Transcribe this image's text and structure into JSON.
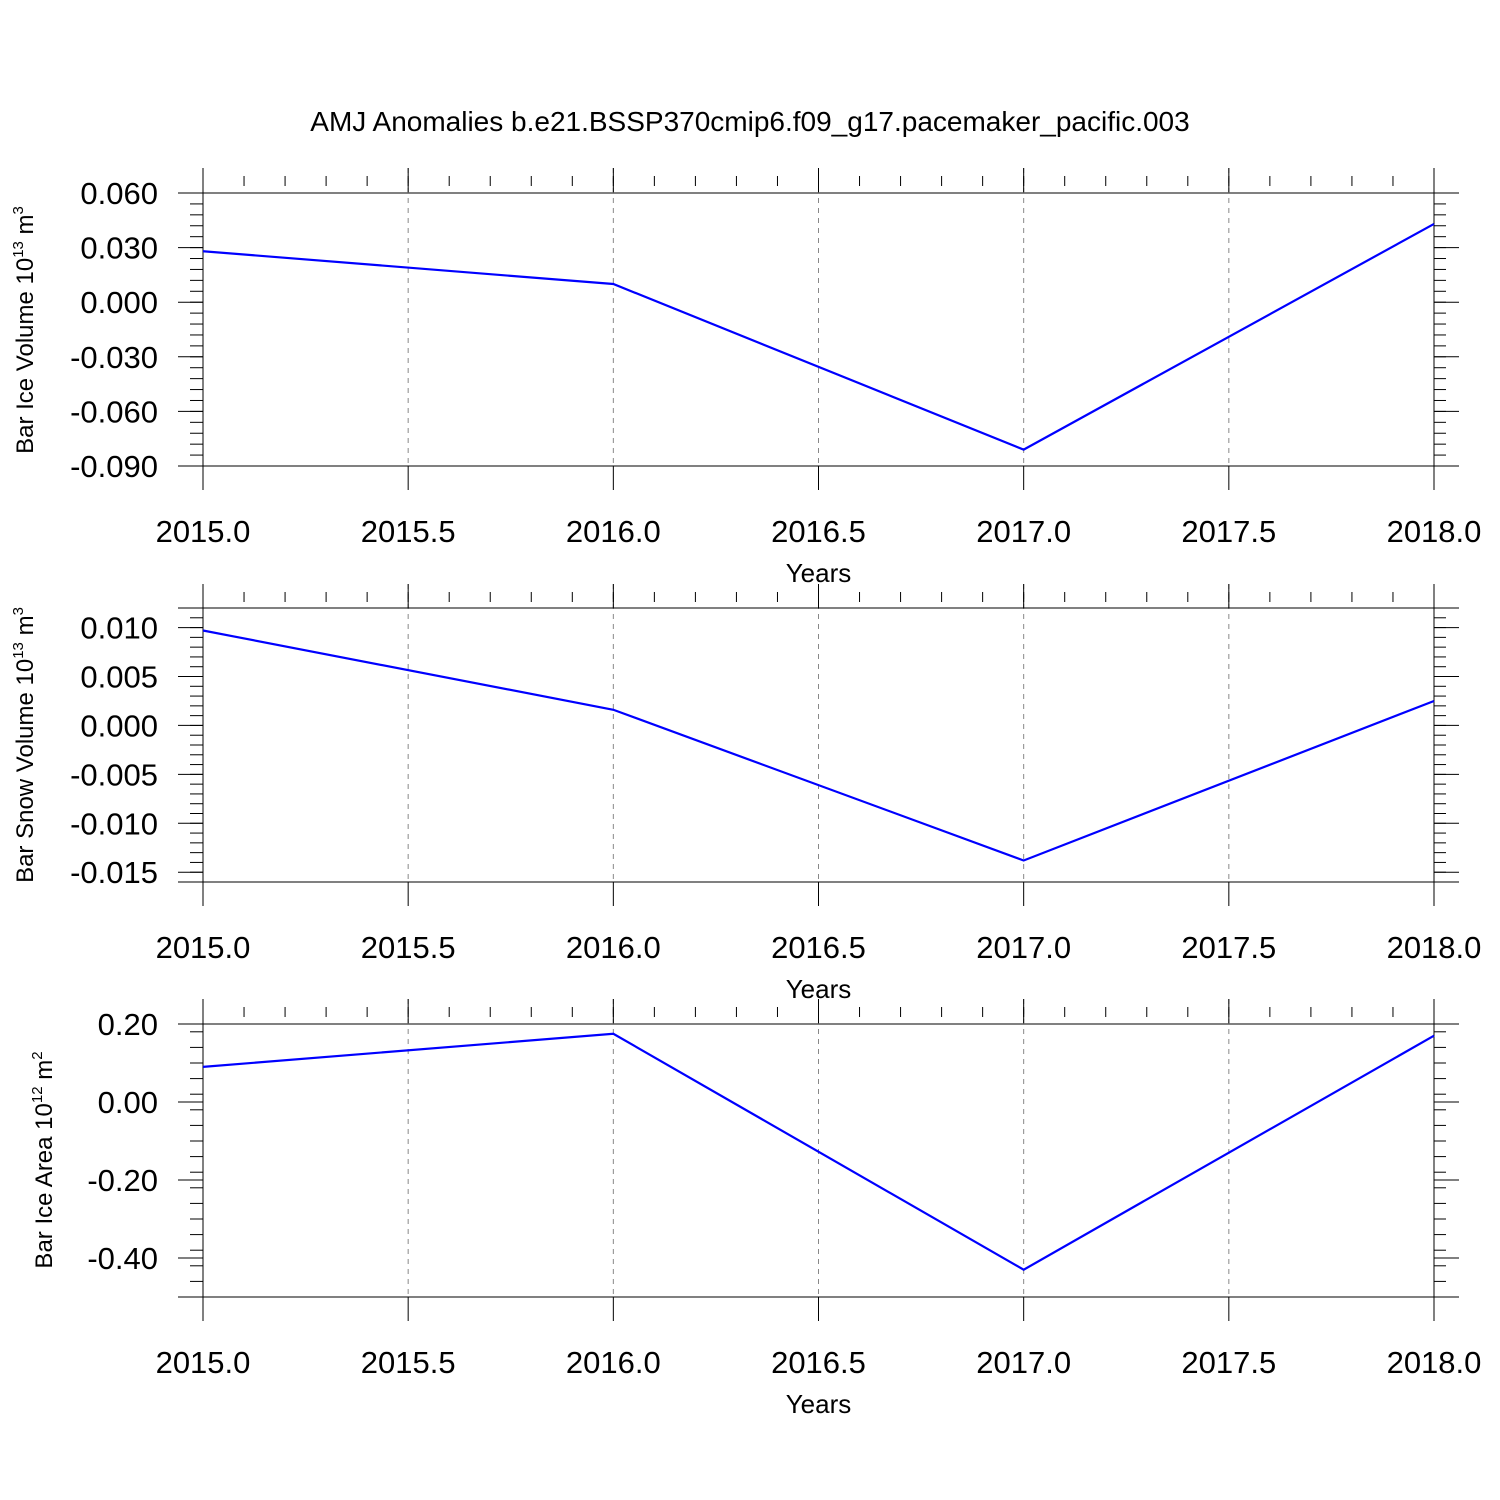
{
  "figure": {
    "title": "AMJ Anomalies b.e21.BSSP370cmip6.f09_g17.pacemaker_pacific.003"
  },
  "chart_data": [
    {
      "type": "line",
      "title": "",
      "xlabel": "Years",
      "ylabel": {
        "main": "Bar Ice Volume 10",
        "exp": "13",
        "unit": " m",
        "unit_exp": "3"
      },
      "x": [
        2015,
        2016,
        2017,
        2018
      ],
      "series": [
        {
          "values": [
            0.028,
            0.01,
            -0.081,
            0.043
          ],
          "color": "#0000ff"
        }
      ],
      "xlim": [
        2015.0,
        2018.0
      ],
      "ylim": [
        -0.09,
        0.06
      ],
      "xticks": [
        "2015.0",
        "2015.5",
        "2016.0",
        "2016.5",
        "2017.0",
        "2017.5",
        "2018.0"
      ],
      "yticks": [
        "0.060",
        "0.030",
        "0.000",
        "-0.030",
        "-0.060",
        "-0.090"
      ],
      "grid": "vertical dashed"
    },
    {
      "type": "line",
      "title": "",
      "xlabel": "Years",
      "ylabel": {
        "main": "Bar Snow Volume 10",
        "exp": "13",
        "unit": " m",
        "unit_exp": "3"
      },
      "x": [
        2015,
        2016,
        2017,
        2018
      ],
      "series": [
        {
          "values": [
            0.0097,
            0.0016,
            -0.0138,
            0.0025
          ],
          "color": "#0000ff"
        }
      ],
      "xlim": [
        2015.0,
        2018.0
      ],
      "ylim": [
        -0.016,
        0.012
      ],
      "xticks": [
        "2015.0",
        "2015.5",
        "2016.0",
        "2016.5",
        "2017.0",
        "2017.5",
        "2018.0"
      ],
      "yticks": [
        "0.010",
        "0.005",
        "0.000",
        "-0.005",
        "-0.010",
        "-0.015"
      ],
      "grid": "vertical dashed"
    },
    {
      "type": "line",
      "title": "",
      "xlabel": "Years",
      "ylabel": {
        "main": "Bar Ice Area 10",
        "exp": "12",
        "unit": " m",
        "unit_exp": "2"
      },
      "x": [
        2015,
        2016,
        2017,
        2018
      ],
      "series": [
        {
          "values": [
            0.09,
            0.175,
            -0.43,
            0.17
          ],
          "color": "#0000ff"
        }
      ],
      "xlim": [
        2015.0,
        2018.0
      ],
      "ylim": [
        -0.5,
        0.2
      ],
      "xticks": [
        "2015.0",
        "2015.5",
        "2016.0",
        "2016.5",
        "2017.0",
        "2017.5",
        "2018.0"
      ],
      "yticks": [
        "0.20",
        "0.00",
        "-0.20",
        "-0.40"
      ],
      "grid": "vertical dashed"
    }
  ]
}
